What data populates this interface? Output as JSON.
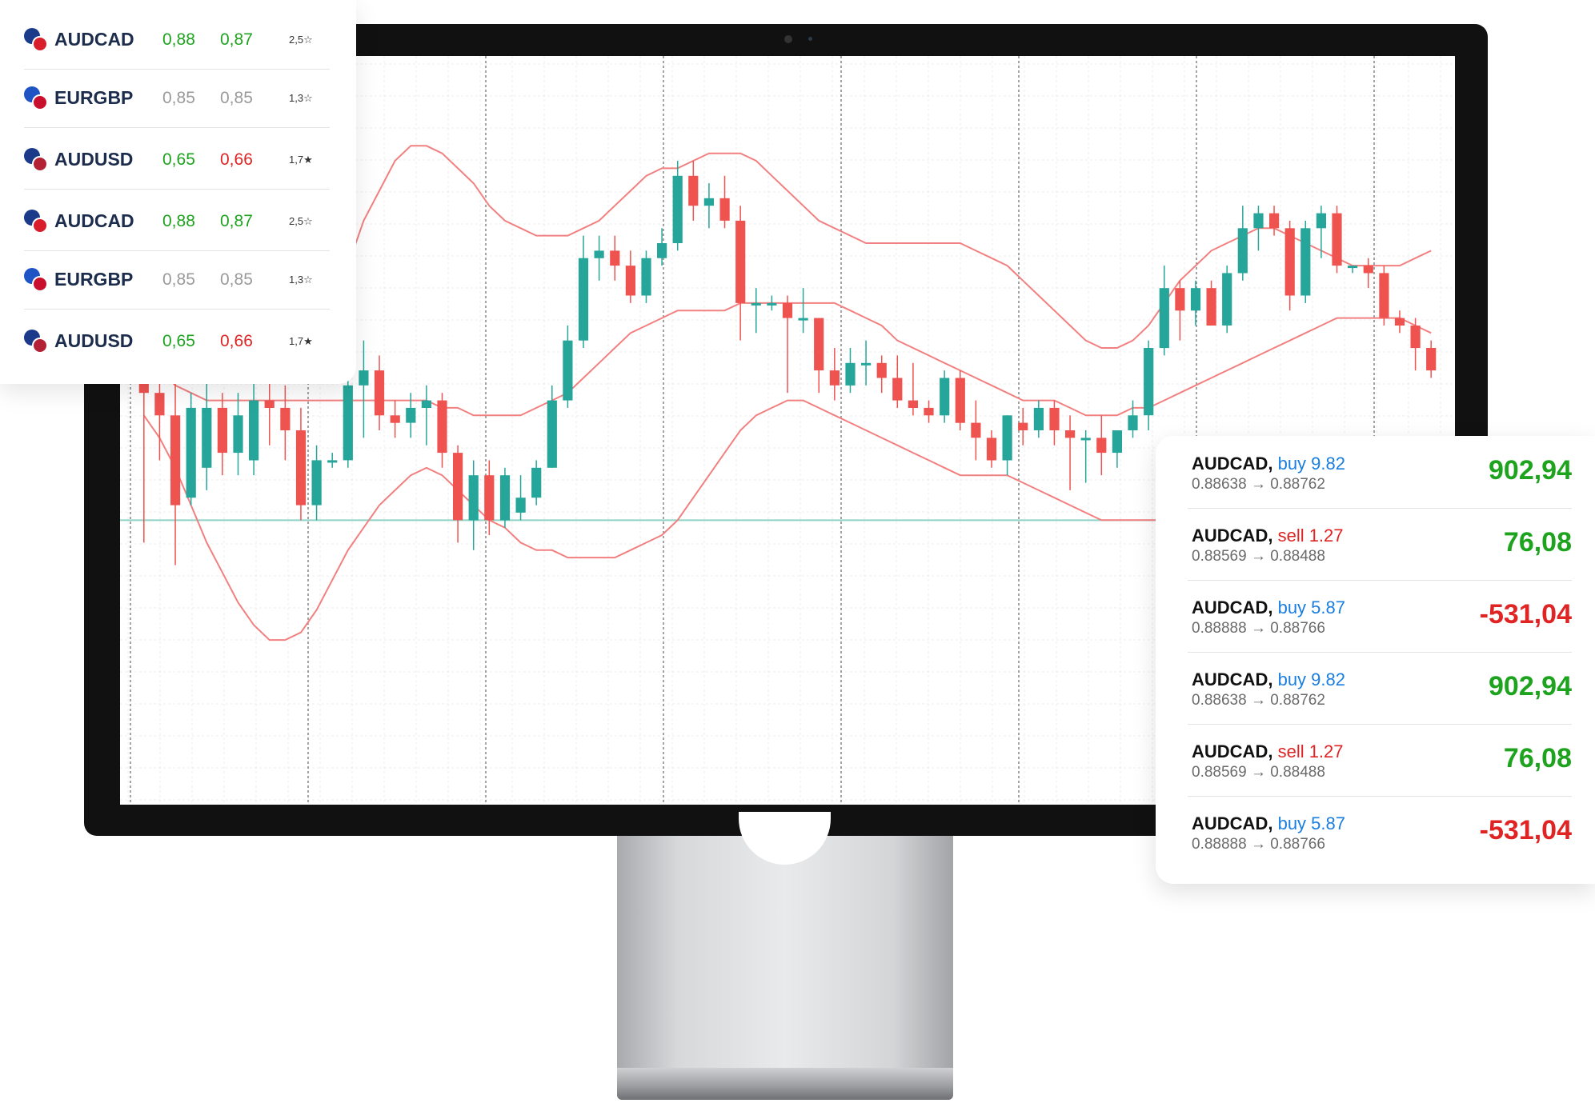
{
  "watchlist": {
    "items": [
      {
        "symbol": "AUDCAD",
        "bid": "0,88",
        "ask": "0,87",
        "bid_color": "green",
        "ask_color": "green",
        "rating": "2,5☆",
        "flag_a": "#1b3a8a",
        "flag_b": "#d81e2b"
      },
      {
        "symbol": "EURGBP",
        "bid": "0,85",
        "ask": "0,85",
        "bid_color": "grey",
        "ask_color": "grey",
        "rating": "1,3☆",
        "flag_a": "#1e54c4",
        "flag_b": "#c8102e"
      },
      {
        "symbol": "AUDUSD",
        "bid": "0,65",
        "ask": "0,66",
        "bid_color": "green",
        "ask_color": "red",
        "rating": "1,7★",
        "flag_a": "#1b3a8a",
        "flag_b": "#b22234"
      },
      {
        "symbol": "AUDCAD",
        "bid": "0,88",
        "ask": "0,87",
        "bid_color": "green",
        "ask_color": "green",
        "rating": "2,5☆",
        "flag_a": "#1b3a8a",
        "flag_b": "#d81e2b"
      },
      {
        "symbol": "EURGBP",
        "bid": "0,85",
        "ask": "0,85",
        "bid_color": "grey",
        "ask_color": "grey",
        "rating": "1,3☆",
        "flag_a": "#1e54c4",
        "flag_b": "#c8102e"
      },
      {
        "symbol": "AUDUSD",
        "bid": "0,65",
        "ask": "0,66",
        "bid_color": "green",
        "ask_color": "red",
        "rating": "1,7★",
        "flag_a": "#1b3a8a",
        "flag_b": "#b22234"
      }
    ]
  },
  "trades": {
    "items": [
      {
        "symbol": "AUDCAD,",
        "action": "buy 9.82",
        "action_type": "buy",
        "prices": "0.88638 → 0.88762",
        "pnl": "902,94",
        "pnl_color": "green"
      },
      {
        "symbol": "AUDCAD,",
        "action": "sell 1.27",
        "action_type": "sell",
        "prices": "0.88569 → 0.88488",
        "pnl": "76,08",
        "pnl_color": "green"
      },
      {
        "symbol": "AUDCAD,",
        "action": "buy 5.87",
        "action_type": "buy",
        "prices": "0.88888 → 0.88766",
        "pnl": "-531,04",
        "pnl_color": "red"
      },
      {
        "symbol": "AUDCAD,",
        "action": "buy 9.82",
        "action_type": "buy",
        "prices": "0.88638 → 0.88762",
        "pnl": "902,94",
        "pnl_color": "green"
      },
      {
        "symbol": "AUDCAD,",
        "action": "sell 1.27",
        "action_type": "sell",
        "prices": "0.88569 → 0.88488",
        "pnl": "76,08",
        "pnl_color": "green"
      },
      {
        "symbol": "AUDCAD,",
        "action": "buy 5.87",
        "action_type": "buy",
        "prices": "0.88888 → 0.88766",
        "pnl": "-531,04",
        "pnl_color": "red"
      }
    ]
  },
  "chart_data": {
    "type": "candlestick",
    "colors": {
      "up": "#26a69a",
      "down": "#ef5350",
      "band": "#f28080",
      "level": "#8fd3c7"
    },
    "ylim": [
      0,
      100
    ],
    "level": 38,
    "candles": [
      {
        "o": 62,
        "h": 70,
        "l": 35,
        "c": 55
      },
      {
        "o": 55,
        "h": 60,
        "l": 46,
        "c": 52
      },
      {
        "o": 52,
        "h": 57,
        "l": 32,
        "c": 40
      },
      {
        "o": 41,
        "h": 55,
        "l": 40,
        "c": 53
      },
      {
        "o": 45,
        "h": 57,
        "l": 42,
        "c": 53
      },
      {
        "o": 53,
        "h": 55,
        "l": 44,
        "c": 47
      },
      {
        "o": 47,
        "h": 55,
        "l": 44,
        "c": 52
      },
      {
        "o": 46,
        "h": 64,
        "l": 44,
        "c": 54
      },
      {
        "o": 54,
        "h": 58,
        "l": 48,
        "c": 53
      },
      {
        "o": 53,
        "h": 56,
        "l": 46,
        "c": 50
      },
      {
        "o": 50,
        "h": 53,
        "l": 38,
        "c": 40
      },
      {
        "o": 40,
        "h": 48,
        "l": 38,
        "c": 46
      },
      {
        "o": 46,
        "h": 47,
        "l": 45,
        "c": 46
      },
      {
        "o": 46,
        "h": 58,
        "l": 45,
        "c": 56
      },
      {
        "o": 56,
        "h": 62,
        "l": 49,
        "c": 58
      },
      {
        "o": 58,
        "h": 60,
        "l": 50,
        "c": 52
      },
      {
        "o": 52,
        "h": 54,
        "l": 49,
        "c": 51
      },
      {
        "o": 51,
        "h": 55,
        "l": 49,
        "c": 53
      },
      {
        "o": 53,
        "h": 56,
        "l": 48,
        "c": 54
      },
      {
        "o": 54,
        "h": 55,
        "l": 45,
        "c": 47
      },
      {
        "o": 47,
        "h": 48,
        "l": 35,
        "c": 38
      },
      {
        "o": 38,
        "h": 46,
        "l": 34,
        "c": 44
      },
      {
        "o": 44,
        "h": 46,
        "l": 36,
        "c": 38
      },
      {
        "o": 38,
        "h": 45,
        "l": 37,
        "c": 44
      },
      {
        "o": 39,
        "h": 44,
        "l": 38,
        "c": 41
      },
      {
        "o": 41,
        "h": 46,
        "l": 40,
        "c": 45
      },
      {
        "o": 45,
        "h": 56,
        "l": 45,
        "c": 54
      },
      {
        "o": 54,
        "h": 64,
        "l": 53,
        "c": 62
      },
      {
        "o": 62,
        "h": 76,
        "l": 61,
        "c": 73
      },
      {
        "o": 73,
        "h": 76,
        "l": 70,
        "c": 74
      },
      {
        "o": 74,
        "h": 76,
        "l": 70,
        "c": 72
      },
      {
        "o": 72,
        "h": 74,
        "l": 67,
        "c": 68
      },
      {
        "o": 68,
        "h": 74,
        "l": 67,
        "c": 73
      },
      {
        "o": 73,
        "h": 77,
        "l": 72,
        "c": 75
      },
      {
        "o": 75,
        "h": 86,
        "l": 74,
        "c": 84
      },
      {
        "o": 84,
        "h": 86,
        "l": 78,
        "c": 80
      },
      {
        "o": 80,
        "h": 83,
        "l": 77,
        "c": 81
      },
      {
        "o": 81,
        "h": 84,
        "l": 77,
        "c": 78
      },
      {
        "o": 78,
        "h": 80,
        "l": 62,
        "c": 67
      },
      {
        "o": 67,
        "h": 69,
        "l": 63,
        "c": 67
      },
      {
        "o": 67,
        "h": 68,
        "l": 66,
        "c": 67
      },
      {
        "o": 67,
        "h": 68,
        "l": 55,
        "c": 65
      },
      {
        "o": 65,
        "h": 69,
        "l": 63,
        "c": 65
      },
      {
        "o": 65,
        "h": 65,
        "l": 55,
        "c": 58
      },
      {
        "o": 58,
        "h": 61,
        "l": 54,
        "c": 56
      },
      {
        "o": 56,
        "h": 61,
        "l": 55,
        "c": 59
      },
      {
        "o": 59,
        "h": 62,
        "l": 56,
        "c": 59
      },
      {
        "o": 59,
        "h": 60,
        "l": 55,
        "c": 57
      },
      {
        "o": 57,
        "h": 60,
        "l": 53,
        "c": 54
      },
      {
        "o": 54,
        "h": 59,
        "l": 52,
        "c": 53
      },
      {
        "o": 53,
        "h": 54,
        "l": 51,
        "c": 52
      },
      {
        "o": 52,
        "h": 58,
        "l": 51,
        "c": 57
      },
      {
        "o": 57,
        "h": 58,
        "l": 50,
        "c": 51
      },
      {
        "o": 51,
        "h": 54,
        "l": 46,
        "c": 49
      },
      {
        "o": 49,
        "h": 50,
        "l": 45,
        "c": 46
      },
      {
        "o": 46,
        "h": 52,
        "l": 44,
        "c": 52
      },
      {
        "o": 51,
        "h": 53,
        "l": 48,
        "c": 50
      },
      {
        "o": 50,
        "h": 54,
        "l": 49,
        "c": 53
      },
      {
        "o": 53,
        "h": 54,
        "l": 48,
        "c": 50
      },
      {
        "o": 50,
        "h": 52,
        "l": 42,
        "c": 49
      },
      {
        "o": 49,
        "h": 50,
        "l": 43,
        "c": 49
      },
      {
        "o": 49,
        "h": 52,
        "l": 44,
        "c": 47
      },
      {
        "o": 47,
        "h": 50,
        "l": 45,
        "c": 50
      },
      {
        "o": 50,
        "h": 54,
        "l": 49,
        "c": 52
      },
      {
        "o": 52,
        "h": 62,
        "l": 50,
        "c": 61
      },
      {
        "o": 61,
        "h": 72,
        "l": 60,
        "c": 69
      },
      {
        "o": 69,
        "h": 70,
        "l": 62,
        "c": 66
      },
      {
        "o": 66,
        "h": 70,
        "l": 64,
        "c": 69
      },
      {
        "o": 69,
        "h": 70,
        "l": 64,
        "c": 64
      },
      {
        "o": 64,
        "h": 72,
        "l": 63,
        "c": 71
      },
      {
        "o": 71,
        "h": 80,
        "l": 70,
        "c": 77
      },
      {
        "o": 77,
        "h": 80,
        "l": 74,
        "c": 79
      },
      {
        "o": 79,
        "h": 80,
        "l": 76,
        "c": 77
      },
      {
        "o": 77,
        "h": 78,
        "l": 66,
        "c": 68
      },
      {
        "o": 68,
        "h": 78,
        "l": 67,
        "c": 77
      },
      {
        "o": 77,
        "h": 80,
        "l": 73,
        "c": 79
      },
      {
        "o": 79,
        "h": 80,
        "l": 71,
        "c": 72
      },
      {
        "o": 72,
        "h": 72,
        "l": 71,
        "c": 72
      },
      {
        "o": 72,
        "h": 73,
        "l": 69,
        "c": 71
      },
      {
        "o": 71,
        "h": 72,
        "l": 64,
        "c": 65
      },
      {
        "o": 65,
        "h": 66,
        "l": 63,
        "c": 64
      },
      {
        "o": 64,
        "h": 65,
        "l": 58,
        "c": 61
      },
      {
        "o": 61,
        "h": 62,
        "l": 57,
        "c": 58
      }
    ],
    "band_upper": [
      66,
      64,
      62,
      60,
      60,
      61,
      62,
      63,
      63,
      62,
      62,
      63,
      66,
      72,
      78,
      82,
      86,
      88,
      88,
      87,
      85,
      83,
      80,
      78,
      77,
      76,
      76,
      76,
      77,
      78,
      80,
      82,
      84,
      85,
      85,
      86,
      87,
      87,
      87,
      86,
      84,
      82,
      80,
      78,
      77,
      76,
      75,
      75,
      75,
      75,
      75,
      75,
      75,
      74,
      73,
      72,
      70,
      68,
      66,
      64,
      62,
      61,
      61,
      62,
      64,
      67,
      70,
      72,
      74,
      75,
      76,
      77,
      77,
      76,
      75,
      74,
      73,
      72,
      72,
      72,
      72,
      73,
      74
    ],
    "band_mid": [
      60,
      58,
      56,
      55,
      54,
      54,
      54,
      54,
      54,
      54,
      54,
      54,
      54,
      54,
      54,
      54,
      54,
      54,
      54,
      53,
      53,
      52,
      52,
      52,
      52,
      53,
      54,
      55,
      57,
      59,
      61,
      63,
      64,
      65,
      66,
      66,
      66,
      66,
      67,
      67,
      67,
      67,
      67,
      67,
      67,
      66,
      65,
      64,
      62,
      61,
      60,
      59,
      58,
      57,
      56,
      55,
      54,
      54,
      54,
      53,
      52,
      52,
      52,
      53,
      53,
      54,
      55,
      56,
      57,
      58,
      59,
      60,
      61,
      62,
      63,
      64,
      65,
      65,
      65,
      65,
      65,
      64,
      63
    ],
    "band_lower": [
      52,
      49,
      45,
      40,
      35,
      31,
      27,
      24,
      22,
      22,
      23,
      26,
      30,
      34,
      37,
      40,
      42,
      44,
      45,
      44,
      42,
      40,
      38,
      37,
      35,
      34,
      34,
      33,
      33,
      33,
      33,
      34,
      35,
      36,
      38,
      41,
      44,
      47,
      50,
      52,
      53,
      54,
      54,
      53,
      52,
      51,
      50,
      49,
      48,
      47,
      46,
      45,
      44,
      44,
      44,
      44,
      43,
      42,
      41,
      40,
      39,
      38,
      38,
      38,
      38,
      38,
      38,
      38,
      38,
      38,
      38,
      38,
      38,
      38,
      38,
      38,
      38,
      38,
      38,
      38,
      38,
      38,
      38
    ]
  }
}
